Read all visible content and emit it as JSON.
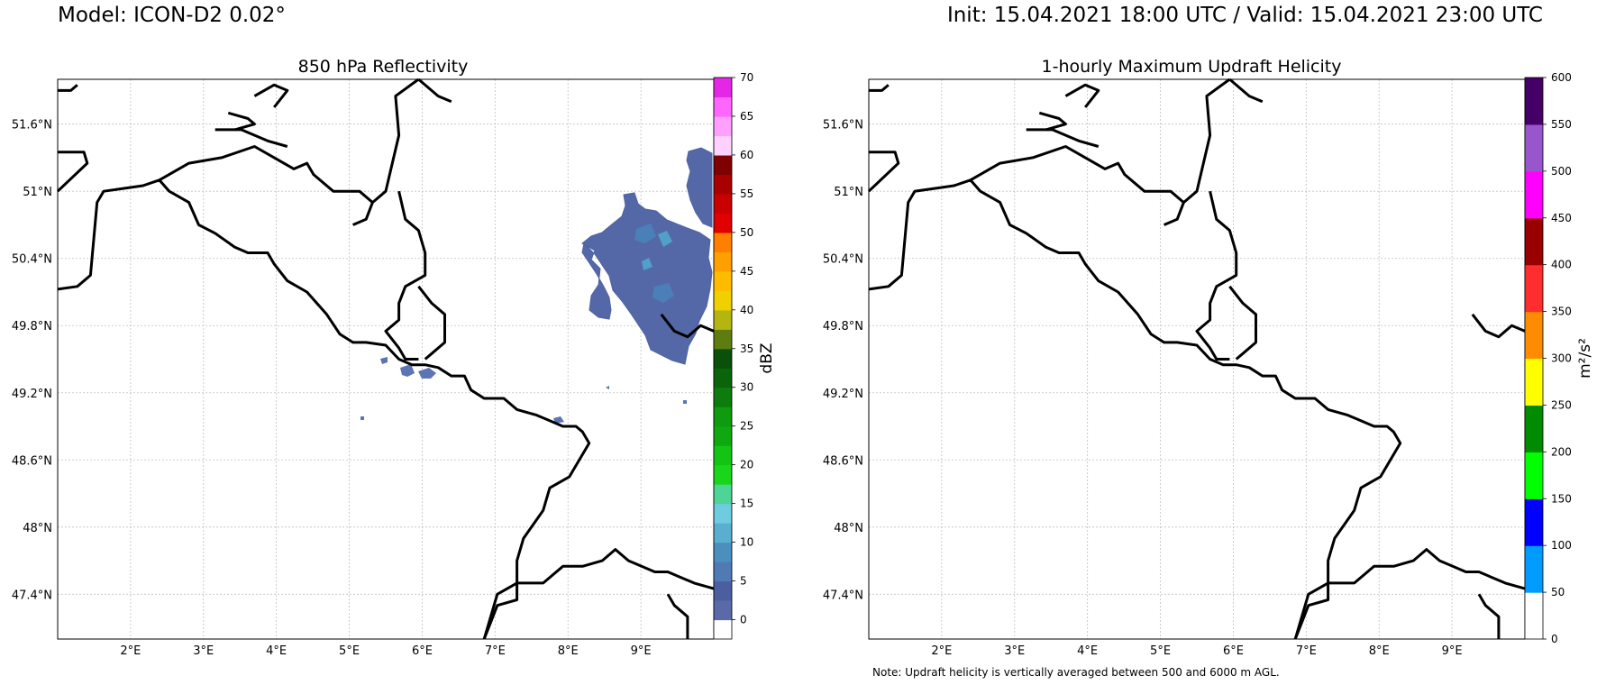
{
  "header": {
    "model": "Model: ICON-D2 0.02°",
    "init_valid": "Init: 15.04.2021 18:00 UTC / Valid: 15.04.2021 23:00 UTC"
  },
  "panels": [
    {
      "title": "850 hPa Reflectivity",
      "colorbar": {
        "label": "dBZ",
        "ticks": [
          "0",
          "5",
          "10",
          "15",
          "20",
          "25",
          "30",
          "35",
          "40",
          "45",
          "50",
          "55",
          "60",
          "65",
          "70"
        ],
        "colors": [
          "#ffffff",
          "#5a6aa8",
          "#4b5fa0",
          "#4f7ab3",
          "#4b8fbf",
          "#5aaed0",
          "#6fcbe0",
          "#4ed496",
          "#1ad61a",
          "#14c414",
          "#10a810",
          "#0f9a0f",
          "#0c7d0c",
          "#0a650a",
          "#0a500a",
          "#5e7d10",
          "#b5b510",
          "#f0d000",
          "#ffbb00",
          "#ff9f00",
          "#ff7f00",
          "#e00000",
          "#c80000",
          "#a80000",
          "#7f0000",
          "#ffd1ff",
          "#ffa0ff",
          "#ff66ff",
          "#e626e6"
        ]
      },
      "legend_note": ""
    },
    {
      "title": "1-hourly Maximum Updraft Helicity",
      "colorbar": {
        "label": "m²/s²",
        "ticks": [
          "0",
          "50",
          "100",
          "150",
          "200",
          "250",
          "300",
          "350",
          "400",
          "450",
          "500",
          "550",
          "600"
        ],
        "colors": [
          "#ffffff",
          "#009bff",
          "#0000ff",
          "#00ff00",
          "#008b00",
          "#ffff00",
          "#ff8c00",
          "#ff2d2d",
          "#990000",
          "#ff00ff",
          "#9955cc",
          "#440066"
        ]
      }
    }
  ],
  "map": {
    "lat_ticks": [
      "51.6°N",
      "51°N",
      "50.4°N",
      "49.8°N",
      "49.2°N",
      "48.6°N",
      "48°N",
      "47.4°N"
    ],
    "lon_ticks": [
      "2°E",
      "3°E",
      "4°E",
      "5°E",
      "6°E",
      "7°E",
      "8°E",
      "9°E"
    ],
    "lat_values": [
      51.6,
      51.0,
      50.4,
      49.8,
      49.2,
      48.6,
      48.0,
      47.4
    ],
    "lon_values": [
      2,
      3,
      4,
      5,
      6,
      7,
      8,
      9
    ],
    "lon_range": [
      1.0,
      10.0
    ],
    "lat_range": [
      47.0,
      52.0
    ],
    "gridlines": true
  },
  "footer": {
    "note": "Note: Updraft helicity is vertically averaged between 500 and 6000 m AGL."
  }
}
